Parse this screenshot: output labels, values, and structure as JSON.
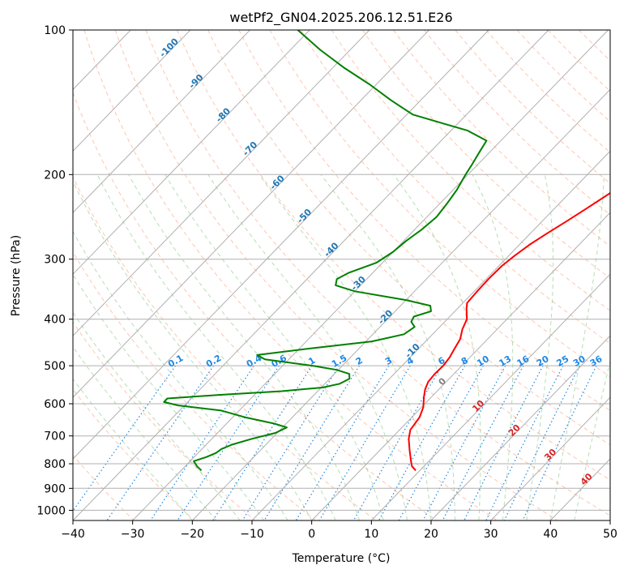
{
  "chart_data": {
    "type": "line",
    "title": "wetPf2_GN04.2025.206.12.51.E26",
    "xlabel": "Temperature (°C)",
    "ylabel": "Pressure (hPa)",
    "xlim": [
      -40,
      50
    ],
    "ylim": [
      1050,
      100
    ],
    "y_scale": "log",
    "grid": true,
    "x_ticks": [
      -40,
      -30,
      -20,
      -10,
      0,
      10,
      20,
      30,
      40,
      50
    ],
    "x_tick_labels": [
      "−40",
      "−30",
      "−20",
      "−10",
      "0",
      "10",
      "20",
      "30",
      "40",
      "50"
    ],
    "y_ticks": [
      100,
      200,
      300,
      400,
      500,
      600,
      700,
      800,
      900,
      1000
    ],
    "y_tick_labels": [
      "100",
      "200",
      "300",
      "400",
      "500",
      "600",
      "700",
      "800",
      "900",
      "1000"
    ],
    "series": [
      {
        "key": "temperature",
        "color": "#ff0000",
        "points": [
          [
            826,
            9.3
          ],
          [
            810,
            8.0
          ],
          [
            790,
            7.0
          ],
          [
            750,
            5.0
          ],
          [
            710,
            3.0
          ],
          [
            680,
            1.8
          ],
          [
            640,
            1.3
          ],
          [
            610,
            0.3
          ],
          [
            580,
            -1.3
          ],
          [
            560,
            -2.3
          ],
          [
            540,
            -3.0
          ],
          [
            520,
            -3.2
          ],
          [
            500,
            -3.1
          ],
          [
            480,
            -3.4
          ],
          [
            460,
            -4.0
          ],
          [
            440,
            -4.6
          ],
          [
            420,
            -5.8
          ],
          [
            400,
            -6.7
          ],
          [
            380,
            -8.5
          ],
          [
            370,
            -9.3
          ],
          [
            350,
            -9.5
          ],
          [
            330,
            -9.6
          ],
          [
            310,
            -9.5
          ],
          [
            295,
            -9.0
          ],
          [
            280,
            -8.3
          ],
          [
            265,
            -7.2
          ],
          [
            250,
            -5.9
          ],
          [
            235,
            -4.6
          ],
          [
            220,
            -3.3
          ],
          [
            205,
            -2.3
          ],
          [
            195,
            -1.8
          ],
          [
            185,
            -1.6
          ],
          [
            175,
            -1.6
          ],
          [
            165,
            -1.8
          ],
          [
            155,
            -2.4
          ],
          [
            145,
            -4.0
          ],
          [
            135,
            -5.3
          ],
          [
            125,
            -7.1
          ],
          [
            115,
            -9.0
          ],
          [
            108,
            -10.7
          ],
          [
            100,
            -13.3
          ]
        ]
      },
      {
        "key": "dewpoint",
        "color": "#008000",
        "points": [
          [
            826,
            -26.6
          ],
          [
            810,
            -28.0
          ],
          [
            790,
            -29.4
          ],
          [
            775,
            -28.0
          ],
          [
            760,
            -27.0
          ],
          [
            745,
            -26.7
          ],
          [
            730,
            -25.7
          ],
          [
            710,
            -23.3
          ],
          [
            690,
            -20.3
          ],
          [
            672,
            -19.3
          ],
          [
            660,
            -22.0
          ],
          [
            640,
            -28.0
          ],
          [
            620,
            -33.0
          ],
          [
            605,
            -41.0
          ],
          [
            595,
            -44.0
          ],
          [
            585,
            -44.0
          ],
          [
            575,
            -36.0
          ],
          [
            565,
            -26.0
          ],
          [
            555,
            -19.8
          ],
          [
            545,
            -17.5
          ],
          [
            532,
            -16.7
          ],
          [
            520,
            -17.5
          ],
          [
            510,
            -20.3
          ],
          [
            500,
            -25.0
          ],
          [
            485,
            -34.0
          ],
          [
            475,
            -36.0
          ],
          [
            460,
            -28.0
          ],
          [
            445,
            -19.0
          ],
          [
            430,
            -14.8
          ],
          [
            415,
            -14.2
          ],
          [
            405,
            -15.6
          ],
          [
            395,
            -16.0
          ],
          [
            385,
            -14.0
          ],
          [
            375,
            -15.0
          ],
          [
            365,
            -20.0
          ],
          [
            350,
            -30.0
          ],
          [
            340,
            -34.2
          ],
          [
            330,
            -35.0
          ],
          [
            320,
            -34.0
          ],
          [
            305,
            -31.0
          ],
          [
            290,
            -30.0
          ],
          [
            275,
            -29.6
          ],
          [
            260,
            -28.8
          ],
          [
            245,
            -28.4
          ],
          [
            230,
            -28.8
          ],
          [
            215,
            -29.4
          ],
          [
            200,
            -30.4
          ],
          [
            190,
            -31.0
          ],
          [
            180,
            -31.7
          ],
          [
            170,
            -32.4
          ],
          [
            162,
            -37.2
          ],
          [
            157,
            -42.0
          ],
          [
            150,
            -49.0
          ],
          [
            140,
            -55.0
          ],
          [
            130,
            -61.0
          ],
          [
            120,
            -68.0
          ],
          [
            110,
            -75.0
          ],
          [
            100,
            -82.0
          ]
        ]
      }
    ],
    "isotherm_labels": [
      {
        "t": -100,
        "text": "-100"
      },
      {
        "t": -90,
        "text": "-90"
      },
      {
        "t": -80,
        "text": "-80"
      },
      {
        "t": -70,
        "text": "-70"
      },
      {
        "t": -60,
        "text": "-60"
      },
      {
        "t": -50,
        "text": "-50"
      },
      {
        "t": -40,
        "text": "-40"
      },
      {
        "t": -30,
        "text": "-30"
      },
      {
        "t": -20,
        "text": "-20"
      },
      {
        "t": -10,
        "text": "-10"
      },
      {
        "t": 0,
        "text": "0"
      },
      {
        "t": 10,
        "text": "10"
      },
      {
        "t": 20,
        "text": "20"
      },
      {
        "t": 30,
        "text": "30"
      },
      {
        "t": 40,
        "text": "40"
      }
    ],
    "mixing_ratio_labels": [
      "0.1",
      "0.2",
      "0.4",
      "0.6",
      "1",
      "1.5",
      "2",
      "3",
      "4",
      "6",
      "8",
      "10",
      "13",
      "16",
      "20",
      "25",
      "30",
      "36"
    ],
    "colors": {
      "temperature": "#ff0000",
      "dewpoint": "#008000",
      "isotherm_cold_label": "#1f77b4",
      "isotherm_zero_label": "#808080",
      "isotherm_warm_label": "#d62728",
      "mixing_ratio": "#1e88e5",
      "dry_adiabat": "#ff7f50",
      "moist_adiabat": "#2ca02c",
      "grid": "#b0b0b0"
    }
  }
}
